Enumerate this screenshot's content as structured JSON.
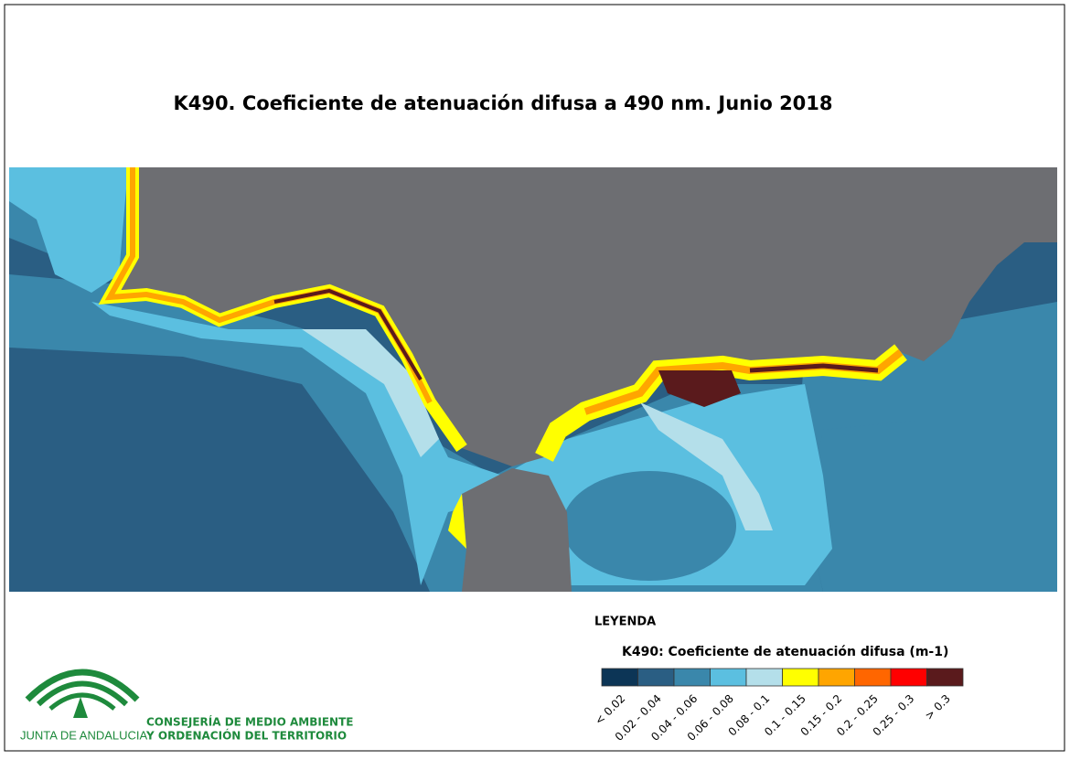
{
  "title": "K490. Coeficiente de atenuación difusa a 490 nm. Junio 2018",
  "legend": {
    "heading": "LEYENDA",
    "title": "K490: Coeficiente de atenuación difusa (m-1)",
    "classes": [
      {
        "label": "< 0.02",
        "color": "#0c3556"
      },
      {
        "label": "0.02 - 0.04",
        "color": "#2a5e83"
      },
      {
        "label": "0.04 - 0.06",
        "color": "#3a87ab"
      },
      {
        "label": "0.06 - 0.08",
        "color": "#5bbfe0"
      },
      {
        "label": "0.08 - 0.1",
        "color": "#b4dfea"
      },
      {
        "label": "0.1 - 0.15",
        "color": "#ffff00"
      },
      {
        "label": "0.15 - 0.2",
        "color": "#ffa500"
      },
      {
        "label": "0.2 - 0.25",
        "color": "#ff6600"
      },
      {
        "label": "0.25 - 0.3",
        "color": "#ff0000"
      },
      {
        "label": "> 0.3",
        "color": "#5a1a1c"
      }
    ]
  },
  "logo": {
    "name": "JUNTA DE ANDALUCIA",
    "line1": "CONSEJERÍA DE MEDIO AMBIENTE",
    "line2": "Y ORDENACIÓN DEL TERRITORIO"
  }
}
